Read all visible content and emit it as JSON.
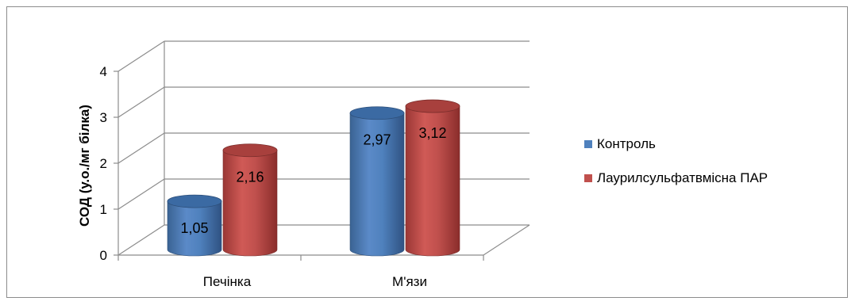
{
  "chart_data": {
    "type": "bar",
    "style": "3d-cylinder",
    "categories": [
      "Печінка",
      "М'язи"
    ],
    "series": [
      {
        "name": "Контроль",
        "values": [
          1.05,
          2.97
        ],
        "color": "#4f81bd"
      },
      {
        "name": "Лаурилсульфатвмісна ПАР",
        "values": [
          2.16,
          3.12
        ],
        "color": "#c0504d"
      }
    ],
    "data_labels": [
      [
        "1,05",
        "2,97"
      ],
      [
        "2,16",
        "3,12"
      ]
    ],
    "ylabel": "СОД (у.о./мг білка)",
    "ylim": [
      0,
      4
    ],
    "yticks": [
      "0",
      "1",
      "2",
      "3",
      "4"
    ],
    "grid": true,
    "legend_position": "right"
  }
}
